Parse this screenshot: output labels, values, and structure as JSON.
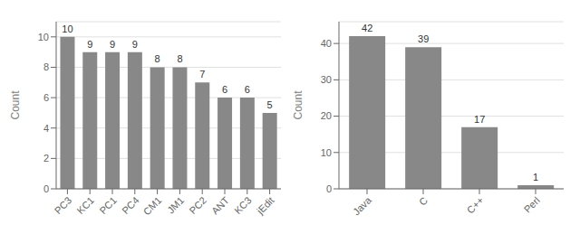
{
  "chart_data": [
    {
      "type": "bar",
      "categories": [
        "PC3",
        "KC1",
        "PC1",
        "PC4",
        "CM1",
        "JM1",
        "PC2",
        "ANT",
        "KC3",
        "jEdit"
      ],
      "values": [
        10,
        9,
        9,
        9,
        8,
        8,
        7,
        6,
        6,
        5
      ],
      "ylabel": "Count",
      "ylim": [
        0,
        11
      ],
      "yticks": [
        0,
        2,
        4,
        6,
        8,
        10
      ],
      "color": "#888888",
      "grid": true,
      "data_labels": true
    },
    {
      "type": "bar",
      "categories": [
        "Java",
        "C",
        "C++",
        "Perl"
      ],
      "values": [
        42,
        39,
        17,
        1
      ],
      "ylabel": "Count",
      "ylim": [
        0,
        46
      ],
      "yticks": [
        0,
        10,
        20,
        30,
        40
      ],
      "color": "#888888",
      "grid": true,
      "data_labels": true
    }
  ]
}
